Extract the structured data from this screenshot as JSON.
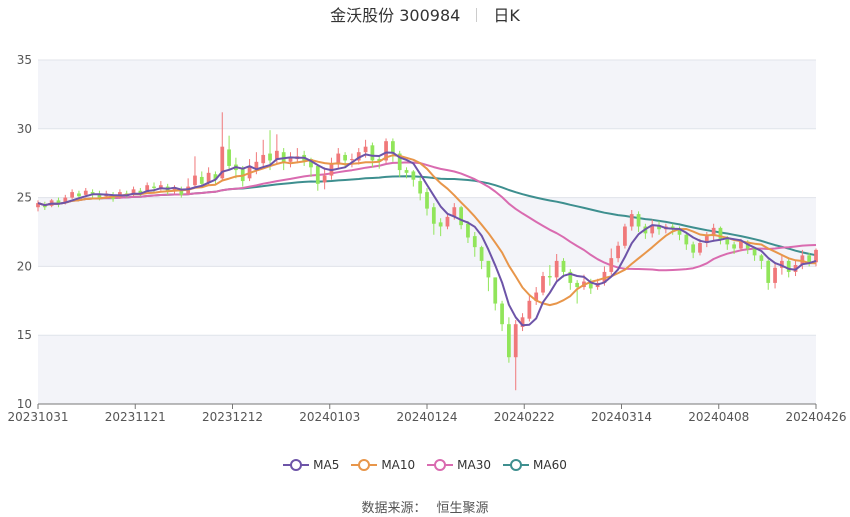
{
  "header": {
    "title": "金沃股份 300984",
    "period": "日K"
  },
  "source": {
    "label": "数据来源：",
    "name": "恒生聚源"
  },
  "colors": {
    "up": "#f0787a",
    "down": "#91e55a",
    "ma5": "#6d54a8",
    "ma10": "#e8964a",
    "ma30": "#d96bb0",
    "ma60": "#3e8f8f",
    "grid": "#e0e3ea",
    "band": "#f3f4f9"
  },
  "chart_data": {
    "type": "candlestick",
    "x_ticks": [
      "20231031",
      "20231121",
      "20231212",
      "20240103",
      "20240124",
      "20240222",
      "20240314",
      "20240408",
      "20240426"
    ],
    "y_ticks": [
      10,
      15,
      20,
      25,
      30,
      35
    ],
    "ylim": [
      10,
      35
    ],
    "legend": [
      "MA5",
      "MA10",
      "MA30",
      "MA60"
    ],
    "candles": [
      [
        24.3,
        24.6,
        24.0,
        24.8
      ],
      [
        24.5,
        24.3,
        24.1,
        24.7
      ],
      [
        24.4,
        24.8,
        24.3,
        24.9
      ],
      [
        24.8,
        24.5,
        24.3,
        25.0
      ],
      [
        24.6,
        25.0,
        24.5,
        25.2
      ],
      [
        25.0,
        25.4,
        24.9,
        25.6
      ],
      [
        25.3,
        25.1,
        24.9,
        25.5
      ],
      [
        25.2,
        25.5,
        25.0,
        25.7
      ],
      [
        25.4,
        25.2,
        25.0,
        25.6
      ],
      [
        25.3,
        25.0,
        24.8,
        25.5
      ],
      [
        25.1,
        25.3,
        24.9,
        25.5
      ],
      [
        25.2,
        24.9,
        24.7,
        25.4
      ],
      [
        25.0,
        25.4,
        24.9,
        25.6
      ],
      [
        25.3,
        25.2,
        25.0,
        25.5
      ],
      [
        25.2,
        25.6,
        25.1,
        25.8
      ],
      [
        25.5,
        25.3,
        25.1,
        25.7
      ],
      [
        25.4,
        25.9,
        25.3,
        26.1
      ],
      [
        25.8,
        25.7,
        25.4,
        26.1
      ],
      [
        25.7,
        25.9,
        25.5,
        26.2
      ],
      [
        25.8,
        25.4,
        25.2,
        26.0
      ],
      [
        25.5,
        25.7,
        25.3,
        25.9
      ],
      [
        25.6,
        25.2,
        25.0,
        25.8
      ],
      [
        25.3,
        25.8,
        25.2,
        26.4
      ],
      [
        25.9,
        26.6,
        25.7,
        28.0
      ],
      [
        26.5,
        26.0,
        25.7,
        26.9
      ],
      [
        26.1,
        26.8,
        25.9,
        27.2
      ],
      [
        26.7,
        26.3,
        26.0,
        26.9
      ],
      [
        26.4,
        28.7,
        26.2,
        31.2
      ],
      [
        28.5,
        27.3,
        27.0,
        29.5
      ],
      [
        27.4,
        27.0,
        26.4,
        27.9
      ],
      [
        27.1,
        26.2,
        25.8,
        27.3
      ],
      [
        26.4,
        27.2,
        26.2,
        27.8
      ],
      [
        27.1,
        27.6,
        26.7,
        28.3
      ],
      [
        27.5,
        28.1,
        27.1,
        29.2
      ],
      [
        28.2,
        27.7,
        27.0,
        29.9
      ],
      [
        27.8,
        28.4,
        27.5,
        29.6
      ],
      [
        28.3,
        27.5,
        27.0,
        28.6
      ],
      [
        27.6,
        27.9,
        27.2,
        28.3
      ],
      [
        27.8,
        28.0,
        27.5,
        28.6
      ],
      [
        28.1,
        27.7,
        27.3,
        28.4
      ],
      [
        27.8,
        27.2,
        26.5,
        27.9
      ],
      [
        27.3,
        26.0,
        25.5,
        27.4
      ],
      [
        26.1,
        26.6,
        25.6,
        27.2
      ],
      [
        26.6,
        27.5,
        26.3,
        27.9
      ],
      [
        27.4,
        28.2,
        27.1,
        28.6
      ],
      [
        28.1,
        27.7,
        27.2,
        28.3
      ],
      [
        27.8,
        27.8,
        27.2,
        28.2
      ],
      [
        27.7,
        28.3,
        27.4,
        28.6
      ],
      [
        28.3,
        28.7,
        27.9,
        29.2
      ],
      [
        28.8,
        27.7,
        27.2,
        29.0
      ],
      [
        27.8,
        27.6,
        27.1,
        28.0
      ],
      [
        27.7,
        29.1,
        27.5,
        29.3
      ],
      [
        29.1,
        28.2,
        27.6,
        29.3
      ],
      [
        28.2,
        27.0,
        26.5,
        28.4
      ],
      [
        27.0,
        26.8,
        26.4,
        27.2
      ],
      [
        26.9,
        26.3,
        25.8,
        27.0
      ],
      [
        26.2,
        25.3,
        24.8,
        26.5
      ],
      [
        25.4,
        24.2,
        23.7,
        25.7
      ],
      [
        24.3,
        23.1,
        22.3,
        24.6
      ],
      [
        23.2,
        22.9,
        22.2,
        23.5
      ],
      [
        22.9,
        23.6,
        22.7,
        23.9
      ],
      [
        23.6,
        24.3,
        23.4,
        24.6
      ],
      [
        24.3,
        23.0,
        22.7,
        24.4
      ],
      [
        23.1,
        22.1,
        21.7,
        23.3
      ],
      [
        22.2,
        21.4,
        20.7,
        22.5
      ],
      [
        21.4,
        20.4,
        19.8,
        21.5
      ],
      [
        20.4,
        19.2,
        18.2,
        20.4
      ],
      [
        19.2,
        17.3,
        16.8,
        19.2
      ],
      [
        17.3,
        15.8,
        15.3,
        17.5
      ],
      [
        15.8,
        13.4,
        13.0,
        16.3
      ],
      [
        13.4,
        15.8,
        11.0,
        16.1
      ],
      [
        15.6,
        16.3,
        15.3,
        16.6
      ],
      [
        16.2,
        17.5,
        16.0,
        17.9
      ],
      [
        17.5,
        18.1,
        17.2,
        18.5
      ],
      [
        18.1,
        19.3,
        17.9,
        19.6
      ],
      [
        19.3,
        19.2,
        18.6,
        20.1
      ],
      [
        19.2,
        20.4,
        18.9,
        20.9
      ],
      [
        20.4,
        19.6,
        19.2,
        20.6
      ],
      [
        19.6,
        18.8,
        18.3,
        19.8
      ],
      [
        18.8,
        18.5,
        17.3,
        19.0
      ],
      [
        18.5,
        18.9,
        18.3,
        19.4
      ],
      [
        18.9,
        18.4,
        18.0,
        19.1
      ],
      [
        18.5,
        18.8,
        18.3,
        19.1
      ],
      [
        18.8,
        19.6,
        18.6,
        20.0
      ],
      [
        19.6,
        20.6,
        19.4,
        21.3
      ],
      [
        20.6,
        21.5,
        20.3,
        21.8
      ],
      [
        21.5,
        22.9,
        21.3,
        23.1
      ],
      [
        22.9,
        23.8,
        22.6,
        24.1
      ],
      [
        23.8,
        22.9,
        22.5,
        24.0
      ],
      [
        22.9,
        22.4,
        22.0,
        23.1
      ],
      [
        22.4,
        23.0,
        22.1,
        23.4
      ],
      [
        23.0,
        22.7,
        22.3,
        23.3
      ],
      [
        22.7,
        22.9,
        22.4,
        23.1
      ],
      [
        22.9,
        22.7,
        22.3,
        23.1
      ],
      [
        22.7,
        22.3,
        21.9,
        22.9
      ],
      [
        22.3,
        21.6,
        21.2,
        22.5
      ],
      [
        21.6,
        21.0,
        20.6,
        21.8
      ],
      [
        21.0,
        21.7,
        20.8,
        22.0
      ],
      [
        21.7,
        22.2,
        21.4,
        22.5
      ],
      [
        22.2,
        22.8,
        21.8,
        23.1
      ],
      [
        22.8,
        22.0,
        21.6,
        22.9
      ],
      [
        22.0,
        21.6,
        21.2,
        22.2
      ],
      [
        21.6,
        21.3,
        20.9,
        21.8
      ],
      [
        21.3,
        21.8,
        21.1,
        22.0
      ],
      [
        21.8,
        21.3,
        20.9,
        21.9
      ],
      [
        21.3,
        20.8,
        20.4,
        21.4
      ],
      [
        20.8,
        20.4,
        19.8,
        20.9
      ],
      [
        20.4,
        18.8,
        18.3,
        20.5
      ],
      [
        18.8,
        19.9,
        18.4,
        20.3
      ],
      [
        19.9,
        20.4,
        19.4,
        20.8
      ],
      [
        20.4,
        19.6,
        19.2,
        20.6
      ],
      [
        19.6,
        20.1,
        19.3,
        20.5
      ],
      [
        20.1,
        20.8,
        19.8,
        21.2
      ],
      [
        20.8,
        20.3,
        20.0,
        21.0
      ],
      [
        20.3,
        21.2,
        20.0,
        21.3
      ]
    ]
  }
}
